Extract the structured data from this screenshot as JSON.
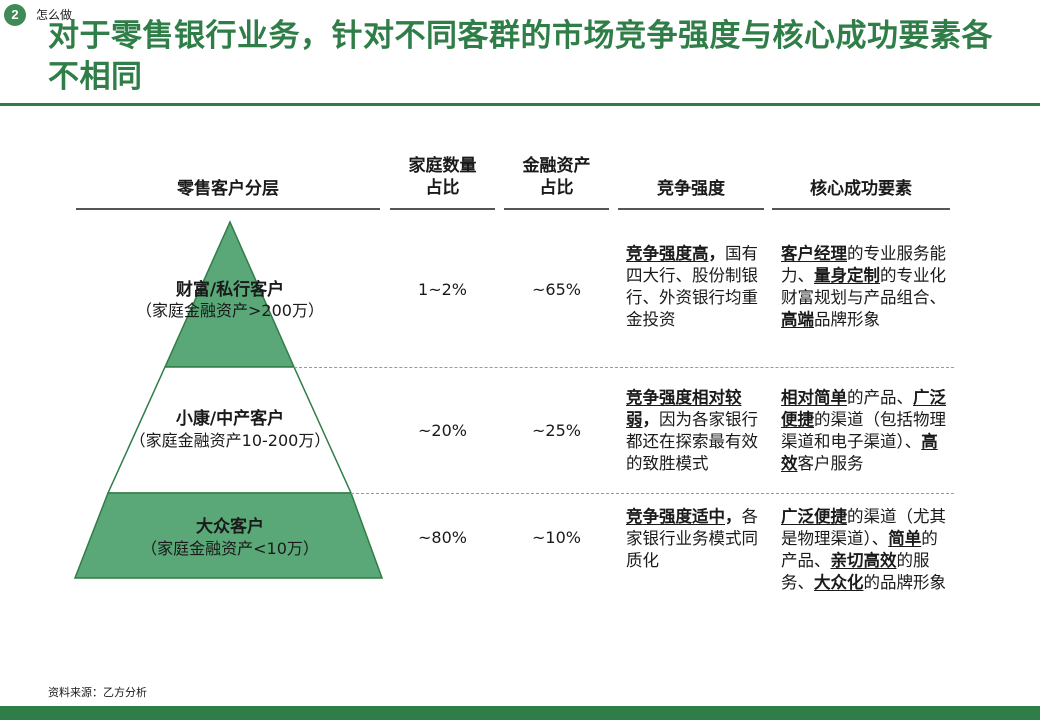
{
  "header": {
    "badge": "2",
    "section": "怎么做"
  },
  "title": "对于零售银行业务，针对不同客群的市场竞争强度与核心成功要素各不相同",
  "columns": {
    "tier": "零售客户分层",
    "households": [
      "家庭数量",
      "占比"
    ],
    "assets": [
      "金融资产",
      "占比"
    ],
    "competition": "竞争强度",
    "success": "核心成功要素"
  },
  "colors": {
    "accent": "#2f7d47",
    "pyramid_fill": "#5aa878"
  },
  "rows": [
    {
      "tier_name": "财富/私行客户",
      "tier_sub": "（家庭金融资产>200万）",
      "households": "1~2%",
      "assets": "~65%",
      "competition": [
        {
          "t": "竞争强度高",
          "s": "u"
        },
        {
          "t": "，",
          "s": "b"
        },
        {
          "t": "国有四大行、股份制银行、外资银行均重金投资",
          "s": ""
        }
      ],
      "success": [
        {
          "t": "客户经理",
          "s": "u"
        },
        {
          "t": "的专业服务能力、",
          "s": ""
        },
        {
          "t": "量身定制",
          "s": "u"
        },
        {
          "t": "的专业化财富规划与产品组合、",
          "s": ""
        },
        {
          "t": "高端",
          "s": "u"
        },
        {
          "t": "品牌形象",
          "s": ""
        }
      ]
    },
    {
      "tier_name": "小康/中产客户",
      "tier_sub": "（家庭金融资产10-200万）",
      "households": "~20%",
      "assets": "~25%",
      "competition": [
        {
          "t": "竞争强度相对较弱",
          "s": "u"
        },
        {
          "t": "，",
          "s": "b"
        },
        {
          "t": "因为各家银行都还在探索最有效的致胜模式",
          "s": ""
        }
      ],
      "success": [
        {
          "t": "相对简单",
          "s": "u"
        },
        {
          "t": "的产品、",
          "s": ""
        },
        {
          "t": "广泛便捷",
          "s": "u"
        },
        {
          "t": "的渠道（包括物理渠道和电子渠道）、",
          "s": ""
        },
        {
          "t": "高效",
          "s": "u"
        },
        {
          "t": "客户服务",
          "s": ""
        }
      ]
    },
    {
      "tier_name": "大众客户",
      "tier_sub": "（家庭金融资产<10万）",
      "households": "~80%",
      "assets": "~10%",
      "competition": [
        {
          "t": "竞争强度适中",
          "s": "u"
        },
        {
          "t": "，",
          "s": "b"
        },
        {
          "t": "各家银行业务模式同质化",
          "s": ""
        }
      ],
      "success": [
        {
          "t": "广泛便捷",
          "s": "u"
        },
        {
          "t": "的渠道（尤其是物理渠道）、",
          "s": ""
        },
        {
          "t": "简单",
          "s": "u"
        },
        {
          "t": "的产品、",
          "s": ""
        },
        {
          "t": "亲切高效",
          "s": "u"
        },
        {
          "t": "的服务、",
          "s": ""
        },
        {
          "t": "大众化",
          "s": "u"
        },
        {
          "t": "的品牌形象",
          "s": ""
        }
      ]
    }
  ],
  "source": "资料来源：乙方分析"
}
